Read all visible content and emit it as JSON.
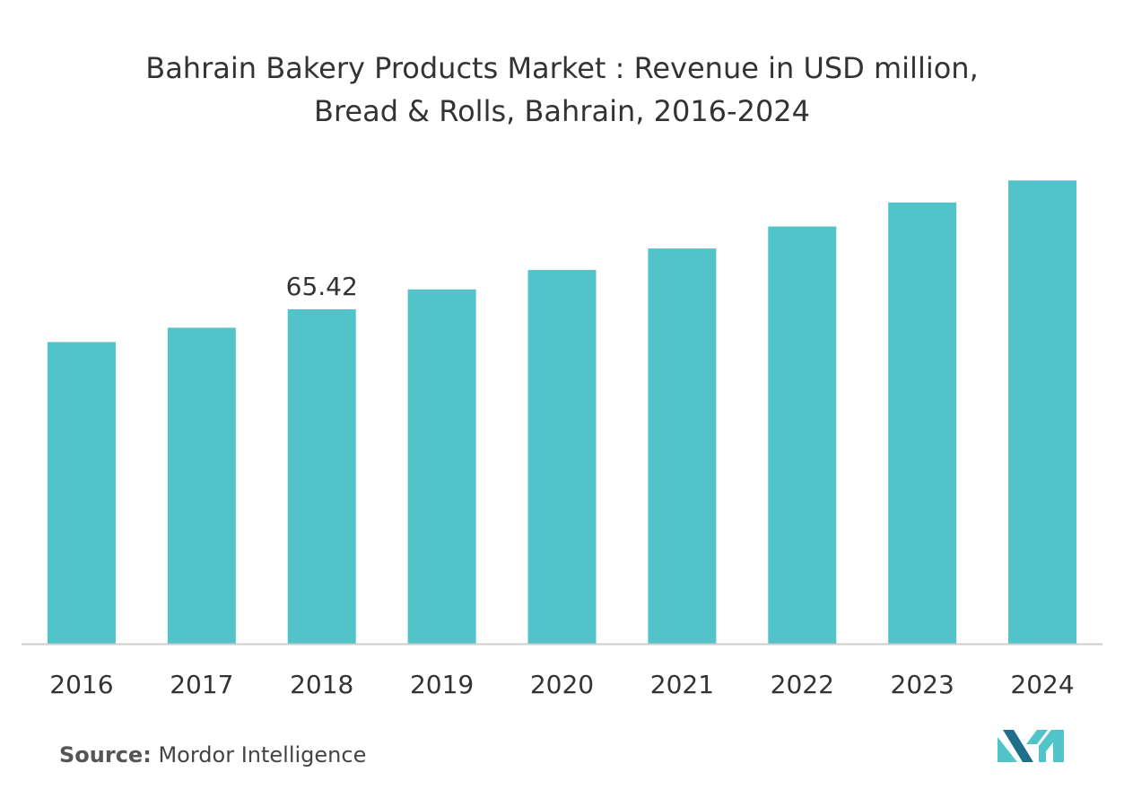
{
  "title_line1": "Bahrain Bakery Products Market : Revenue in USD million,",
  "title_line2": "Bread & Rolls, Bahrain, 2016-2024",
  "source_label": "Source:",
  "source_value": "Mordor Intelligence",
  "colors": {
    "bar": "#52c3c8",
    "axis": "#cccccc",
    "text": "#333333",
    "logo_dark": "#1f6f8b",
    "logo_light": "#52c3c8"
  },
  "chart_data": {
    "type": "bar",
    "title": "Bahrain Bakery Products Market : Revenue in USD million, Bread & Rolls, Bahrain, 2016-2024",
    "xlabel": "",
    "ylabel": "",
    "categories": [
      "2016",
      "2017",
      "2018",
      "2019",
      "2020",
      "2021",
      "2022",
      "2023",
      "2024"
    ],
    "values": [
      59.0,
      61.8,
      65.42,
      69.3,
      73.1,
      77.3,
      81.6,
      86.3,
      90.6
    ],
    "data_labels": [
      null,
      null,
      "65.42",
      null,
      null,
      null,
      null,
      null,
      null
    ],
    "ylim": [
      0,
      91
    ],
    "grid": false,
    "legend": "none"
  }
}
